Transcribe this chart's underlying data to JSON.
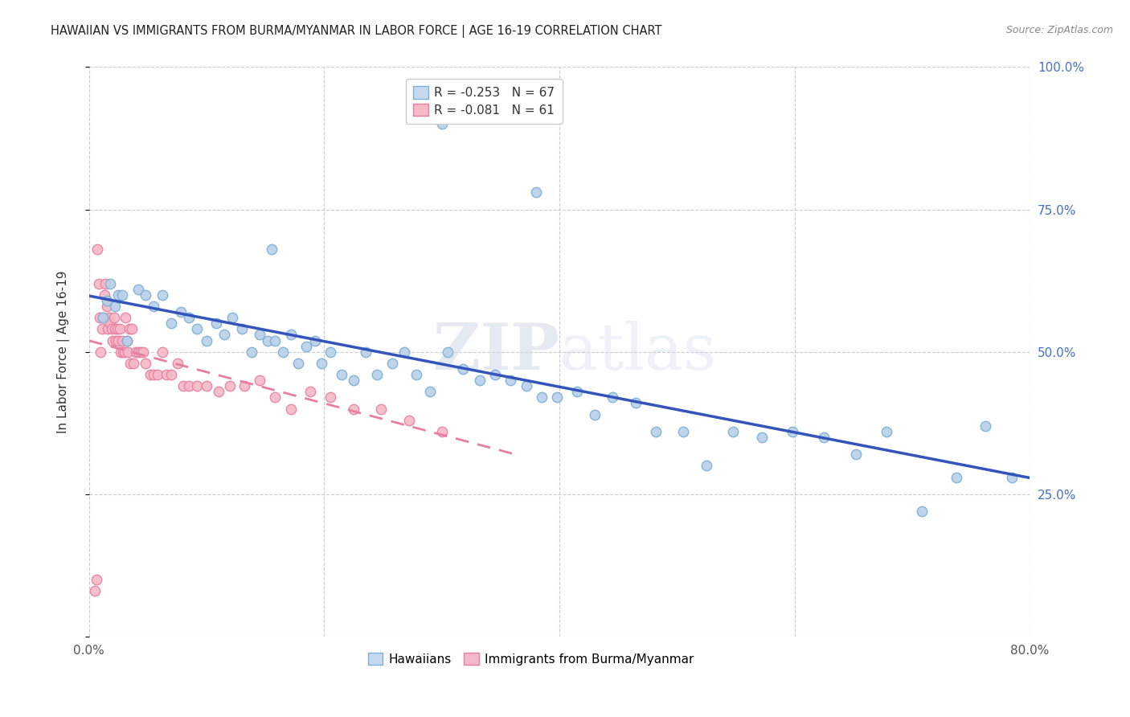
{
  "title": "HAWAIIAN VS IMMIGRANTS FROM BURMA/MYANMAR IN LABOR FORCE | AGE 16-19 CORRELATION CHART",
  "source": "Source: ZipAtlas.com",
  "ylabel": "In Labor Force | Age 16-19",
  "xlim": [
    0.0,
    0.8
  ],
  "ylim": [
    0.0,
    1.0
  ],
  "blue_R": -0.253,
  "blue_N": 67,
  "pink_R": -0.081,
  "pink_N": 61,
  "legend_label1": "R = -0.253   N = 67",
  "legend_label2": "R = -0.081   N = 61",
  "watermark": "ZIPatlas",
  "blue_color": "#b8d0e8",
  "blue_edge": "#7bafd4",
  "blue_line": "#3355bb",
  "pink_color": "#f5b8c8",
  "pink_edge": "#e87fa0",
  "pink_line": "#e87fa0",
  "legend_blue_fill": "#c5d8ed",
  "legend_pink_fill": "#f5b8c8",
  "background_color": "#ffffff",
  "grid_color": "#cccccc",
  "marker_size": 80,
  "blue_points_x": [
    0.3,
    0.38,
    0.155,
    0.022,
    0.032,
    0.018,
    0.025,
    0.015,
    0.012,
    0.028,
    0.042,
    0.048,
    0.055,
    0.062,
    0.07,
    0.078,
    0.085,
    0.092,
    0.1,
    0.108,
    0.115,
    0.122,
    0.13,
    0.138,
    0.145,
    0.152,
    0.158,
    0.165,
    0.172,
    0.178,
    0.185,
    0.192,
    0.198,
    0.205,
    0.215,
    0.225,
    0.235,
    0.245,
    0.258,
    0.268,
    0.278,
    0.29,
    0.305,
    0.318,
    0.332,
    0.345,
    0.358,
    0.372,
    0.385,
    0.398,
    0.415,
    0.43,
    0.445,
    0.465,
    0.482,
    0.505,
    0.525,
    0.548,
    0.572,
    0.598,
    0.625,
    0.652,
    0.678,
    0.708,
    0.738,
    0.762,
    0.785
  ],
  "blue_points_y": [
    0.9,
    0.78,
    0.68,
    0.58,
    0.52,
    0.62,
    0.6,
    0.59,
    0.56,
    0.6,
    0.61,
    0.6,
    0.58,
    0.6,
    0.55,
    0.57,
    0.56,
    0.54,
    0.52,
    0.55,
    0.53,
    0.56,
    0.54,
    0.5,
    0.53,
    0.52,
    0.52,
    0.5,
    0.53,
    0.48,
    0.51,
    0.52,
    0.48,
    0.5,
    0.46,
    0.45,
    0.5,
    0.46,
    0.48,
    0.5,
    0.46,
    0.43,
    0.5,
    0.47,
    0.45,
    0.46,
    0.45,
    0.44,
    0.42,
    0.42,
    0.43,
    0.39,
    0.42,
    0.41,
    0.36,
    0.36,
    0.3,
    0.36,
    0.35,
    0.36,
    0.35,
    0.32,
    0.36,
    0.22,
    0.28,
    0.37,
    0.28
  ],
  "pink_points_x": [
    0.005,
    0.006,
    0.007,
    0.008,
    0.009,
    0.01,
    0.011,
    0.012,
    0.013,
    0.014,
    0.015,
    0.016,
    0.017,
    0.018,
    0.019,
    0.02,
    0.021,
    0.022,
    0.023,
    0.024,
    0.025,
    0.026,
    0.027,
    0.028,
    0.029,
    0.03,
    0.031,
    0.032,
    0.033,
    0.034,
    0.035,
    0.036,
    0.038,
    0.04,
    0.042,
    0.044,
    0.046,
    0.048,
    0.052,
    0.055,
    0.058,
    0.062,
    0.066,
    0.07,
    0.075,
    0.08,
    0.085,
    0.092,
    0.1,
    0.11,
    0.12,
    0.132,
    0.145,
    0.158,
    0.172,
    0.188,
    0.205,
    0.225,
    0.248,
    0.272,
    0.3
  ],
  "pink_points_y": [
    0.08,
    0.1,
    0.68,
    0.62,
    0.56,
    0.5,
    0.54,
    0.56,
    0.6,
    0.62,
    0.58,
    0.54,
    0.56,
    0.55,
    0.54,
    0.52,
    0.56,
    0.54,
    0.52,
    0.54,
    0.52,
    0.54,
    0.5,
    0.52,
    0.5,
    0.5,
    0.56,
    0.52,
    0.5,
    0.54,
    0.48,
    0.54,
    0.48,
    0.5,
    0.5,
    0.5,
    0.5,
    0.48,
    0.46,
    0.46,
    0.46,
    0.5,
    0.46,
    0.46,
    0.48,
    0.44,
    0.44,
    0.44,
    0.44,
    0.43,
    0.44,
    0.44,
    0.45,
    0.42,
    0.4,
    0.43,
    0.42,
    0.4,
    0.4,
    0.38,
    0.36
  ]
}
